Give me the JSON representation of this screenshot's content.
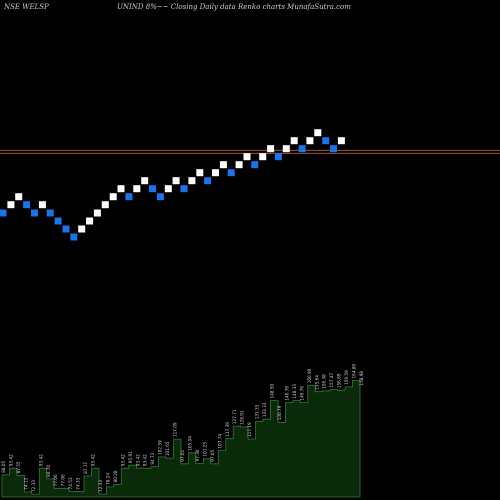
{
  "header": {
    "left": "NSE WELSP",
    "right": "UNIND 8%~~ Closing Daily data  Renko  charts MunafaSutra.com"
  },
  "colors": {
    "up_brick": "#ffffff",
    "down_brick": "#1a73e8",
    "resistance": "#a0522d",
    "volume_fill": "#0a2a0a",
    "volume_stroke": "#2e7d32",
    "label": "#d0d0d0"
  },
  "chart_data": {
    "type": "renko",
    "title": "NSE WELSP",
    "bricks": [
      {
        "dir": "down",
        "price": 94.45
      },
      {
        "dir": "up",
        "price": 102.27
      },
      {
        "dir": "up",
        "price": 110.45
      },
      {
        "dir": "down",
        "price": 102.27
      },
      {
        "dir": "down",
        "price": 94.45
      },
      {
        "dir": "up",
        "price": 102.27
      },
      {
        "dir": "down",
        "price": 94.45
      },
      {
        "dir": "down",
        "price": 87.44
      },
      {
        "dir": "down",
        "price": 80.96
      },
      {
        "dir": "down",
        "price": 74.96
      },
      {
        "dir": "up",
        "price": 80.96
      },
      {
        "dir": "up",
        "price": 87.44
      },
      {
        "dir": "up",
        "price": 94.45
      },
      {
        "dir": "up",
        "price": 102.27
      },
      {
        "dir": "up",
        "price": 110.45
      },
      {
        "dir": "up",
        "price": 119.29
      },
      {
        "dir": "down",
        "price": 110.45
      },
      {
        "dir": "up",
        "price": 119.29
      },
      {
        "dir": "up",
        "price": 128.83
      },
      {
        "dir": "down",
        "price": 119.29
      },
      {
        "dir": "down",
        "price": 110.45
      },
      {
        "dir": "up",
        "price": 119.29
      },
      {
        "dir": "up",
        "price": 128.83
      },
      {
        "dir": "down",
        "price": 119.29
      },
      {
        "dir": "up",
        "price": 128.83
      },
      {
        "dir": "up",
        "price": 139.14
      },
      {
        "dir": "down",
        "price": 128.83
      },
      {
        "dir": "up",
        "price": 139.14
      },
      {
        "dir": "up",
        "price": 150.27
      },
      {
        "dir": "down",
        "price": 139.14
      },
      {
        "dir": "up",
        "price": 150.27
      },
      {
        "dir": "up",
        "price": 162.29
      },
      {
        "dir": "down",
        "price": 150.27
      },
      {
        "dir": "up",
        "price": 162.29
      },
      {
        "dir": "up",
        "price": 175.27
      },
      {
        "dir": "down",
        "price": 162.29
      },
      {
        "dir": "up",
        "price": 175.27
      },
      {
        "dir": "up",
        "price": 189.29
      },
      {
        "dir": "down",
        "price": 175.27
      },
      {
        "dir": "up",
        "price": 189.29
      },
      {
        "dir": "up",
        "price": 204.43
      },
      {
        "dir": "down",
        "price": 189.29
      },
      {
        "dir": "down",
        "price": 175.27
      },
      {
        "dir": "up",
        "price": 189.29
      }
    ],
    "resistance_lines": [
      167.5,
      172.5
    ],
    "volume_labels": [
      "88.05",
      "93.42",
      "87.55",
      "74.13",
      "72.33",
      "93.42",
      "84.70",
      "77.06",
      "77.06",
      "74.53",
      "74.33",
      "87.17",
      "93.42",
      "72.33",
      "78.24",
      "80.28",
      "93.42",
      "95.91",
      "93.42",
      "93.42",
      "94.72",
      "102.59",
      "101.65",
      "117.09",
      "97.01",
      "105.94",
      "97.30",
      "101.25",
      "97.05",
      "107.74",
      "117.39",
      "127.71",
      "126.91",
      "117.19",
      "131.55",
      "133.33",
      "148.50",
      "130.79",
      "146.76",
      "148.33",
      "146.76",
      "160.90",
      "155.64",
      "156.38",
      "157.47",
      "156.89",
      "159.59",
      "164.80",
      "158.98"
    ]
  }
}
